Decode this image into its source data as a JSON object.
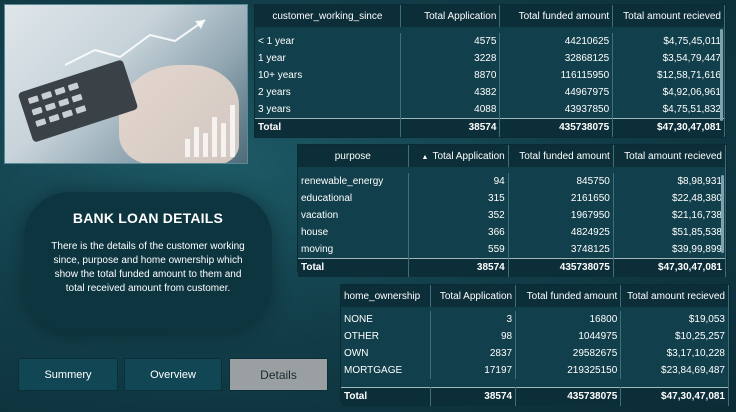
{
  "panel": {
    "title": "BANK LOAN DETAILS",
    "description": "There is the details of the customer working since, purpose and home ownership which show the total funded amount to them and total received amount from customer."
  },
  "nav": {
    "summary": "Summery",
    "overview": "Overview",
    "details": "Details",
    "active": "details"
  },
  "table_working_since": {
    "headers": [
      "customer_working_since",
      "Total Application",
      "Total funded amount",
      "Total amount recieved"
    ],
    "rows": [
      [
        "< 1 year",
        "4575",
        "44210625",
        "$4,75,45,011"
      ],
      [
        "1 year",
        "3228",
        "32868125",
        "$3,54,79,447"
      ],
      [
        "10+ years",
        "8870",
        "116115950",
        "$12,58,71,616"
      ],
      [
        "2 years",
        "4382",
        "44967975",
        "$4,92,06,961"
      ],
      [
        "3 years",
        "4088",
        "43937850",
        "$4,75,51,832"
      ]
    ],
    "total": [
      "Total",
      "38574",
      "435738075",
      "$47,30,47,081"
    ]
  },
  "table_purpose": {
    "headers": [
      "purpose",
      "Total Application",
      "Total funded amount",
      "Total amount recieved"
    ],
    "rows": [
      [
        "renewable_energy",
        "94",
        "845750",
        "$8,98,931"
      ],
      [
        "educational",
        "315",
        "2161650",
        "$22,48,380"
      ],
      [
        "vacation",
        "352",
        "1967950",
        "$21,16,738"
      ],
      [
        "house",
        "366",
        "4824925",
        "$51,85,538"
      ],
      [
        "moving",
        "559",
        "3748125",
        "$39,99,899"
      ]
    ],
    "total": [
      "Total",
      "38574",
      "435738075",
      "$47,30,47,081"
    ]
  },
  "table_home_ownership": {
    "headers": [
      "home_ownership",
      "Total Application",
      "Total funded amount",
      "Total amount recieved"
    ],
    "rows": [
      [
        "NONE",
        "3",
        "16800",
        "$19,053"
      ],
      [
        "OTHER",
        "98",
        "1044975",
        "$10,25,257"
      ],
      [
        "OWN",
        "2837",
        "29582675",
        "$3,17,10,228"
      ],
      [
        "MORTGAGE",
        "17197",
        "219325150",
        "$23,84,69,487"
      ]
    ],
    "total": [
      "Total",
      "38574",
      "435738075",
      "$47,30,47,081"
    ]
  }
}
